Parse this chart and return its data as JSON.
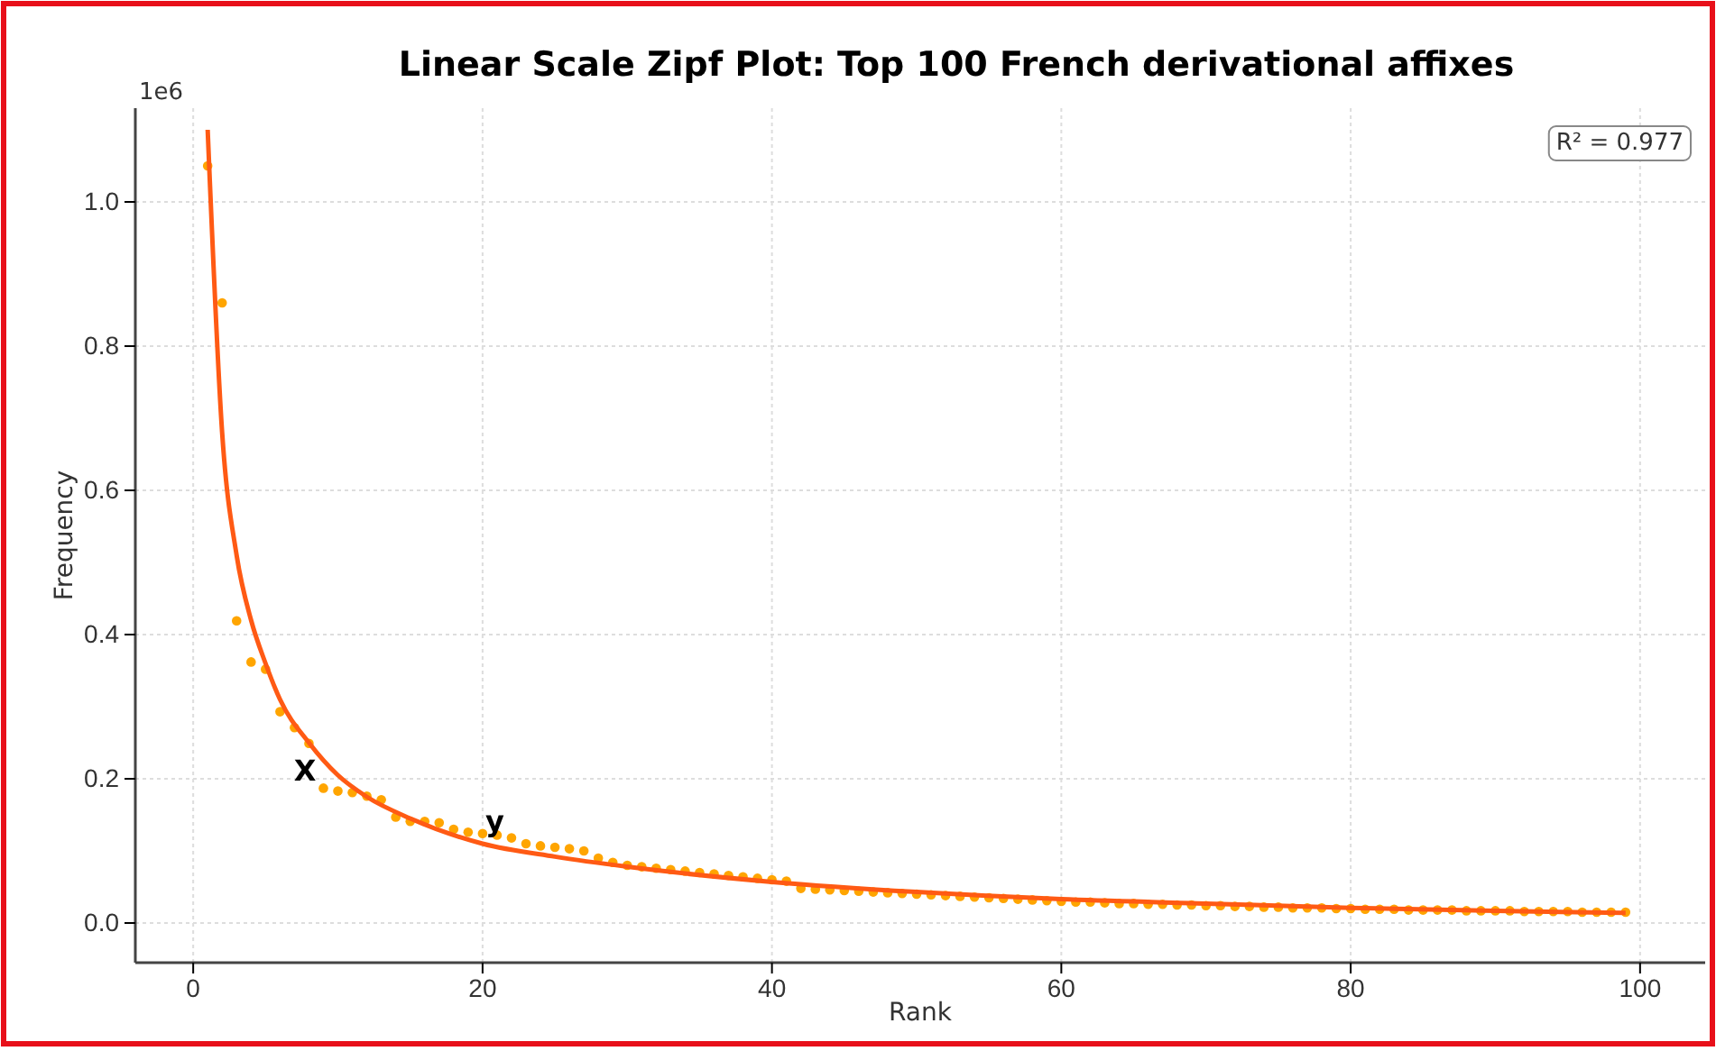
{
  "chart_data": {
    "type": "scatter",
    "title": "Linear Scale Zipf Plot: Top 100 French derivational affixes",
    "xlabel": "Rank",
    "ylabel": "Frequency",
    "annotations": [
      "1e6",
      "R² = 0.977",
      {
        "text": "X",
        "x": 9,
        "y": 0.187
      },
      {
        "text": "y",
        "x": 22,
        "y": 0.118
      }
    ],
    "xlim": [
      -4,
      104.5
    ],
    "ylim": [
      -0.055,
      1.13
    ],
    "xticks": [
      0,
      20,
      40,
      60,
      80,
      100
    ],
    "yticks": [
      {
        "value": 0,
        "label": "0.0"
      },
      {
        "value": 0.2,
        "label": "0.2"
      },
      {
        "value": 0.4,
        "label": "0.4"
      },
      {
        "value": 0.6,
        "label": "0.6"
      },
      {
        "value": 0.8,
        "label": "0.8"
      },
      {
        "value": 1,
        "label": "1.0"
      }
    ],
    "grid": true,
    "marker": "circle",
    "series": [
      {
        "color": "#ffa500",
        "x": [
          1,
          2,
          3,
          4,
          5,
          6,
          7,
          8,
          9,
          10,
          11,
          12,
          13,
          14,
          15,
          16,
          17,
          18,
          19,
          20,
          21,
          22,
          23,
          24,
          25,
          26,
          27,
          28,
          29,
          30,
          31,
          32,
          33,
          34,
          35,
          36,
          37,
          38,
          39,
          40,
          41,
          42,
          43,
          44,
          45,
          46,
          47,
          48,
          49,
          50,
          51,
          52,
          53,
          54,
          55,
          56,
          57,
          58,
          59,
          60,
          61,
          62,
          63,
          64,
          65,
          66,
          67,
          68,
          69,
          70,
          71,
          72,
          73,
          74,
          75,
          76,
          77,
          78,
          79,
          80,
          81,
          82,
          83,
          84,
          85,
          86,
          87,
          88,
          89,
          90,
          91,
          92,
          93,
          94,
          95,
          96,
          97,
          98,
          99
        ],
        "values": [
          1.05,
          0.86,
          0.419,
          0.362,
          0.352,
          0.293,
          0.271,
          0.249,
          0.187,
          0.183,
          0.181,
          0.176,
          0.171,
          0.147,
          0.141,
          0.141,
          0.139,
          0.13,
          0.126,
          0.124,
          0.122,
          0.118,
          0.11,
          0.107,
          0.105,
          0.103,
          0.1,
          0.09,
          0.084,
          0.08,
          0.078,
          0.076,
          0.074,
          0.072,
          0.07,
          0.068,
          0.066,
          0.064,
          0.062,
          0.06,
          0.058,
          0.048,
          0.047,
          0.046,
          0.045,
          0.044,
          0.043,
          0.042,
          0.041,
          0.04,
          0.039,
          0.038,
          0.037,
          0.036,
          0.035,
          0.034,
          0.033,
          0.032,
          0.031,
          0.03,
          0.029,
          0.029,
          0.028,
          0.027,
          0.027,
          0.026,
          0.026,
          0.025,
          0.025,
          0.024,
          0.024,
          0.023,
          0.023,
          0.022,
          0.022,
          0.021,
          0.021,
          0.021,
          0.02,
          0.02,
          0.019,
          0.019,
          0.019,
          0.018,
          0.018,
          0.018,
          0.018,
          0.017,
          0.017,
          0.017,
          0.017,
          0.016,
          0.016,
          0.016,
          0.016,
          0.015,
          0.015,
          0.015,
          0.015
        ]
      },
      {
        "type": "line",
        "color": "#ff5a14",
        "marker": "none",
        "line_style": "solid",
        "x": [
          1,
          2,
          3,
          4,
          5,
          6,
          8,
          10,
          12,
          15,
          20,
          25,
          30,
          40,
          50,
          60,
          70,
          80,
          90,
          99
        ],
        "values": [
          1.1,
          0.68,
          0.51,
          0.42,
          0.36,
          0.31,
          0.25,
          0.205,
          0.175,
          0.145,
          0.11,
          0.092,
          0.078,
          0.057,
          0.043,
          0.033,
          0.027,
          0.021,
          0.017,
          0.014
        ]
      }
    ]
  }
}
